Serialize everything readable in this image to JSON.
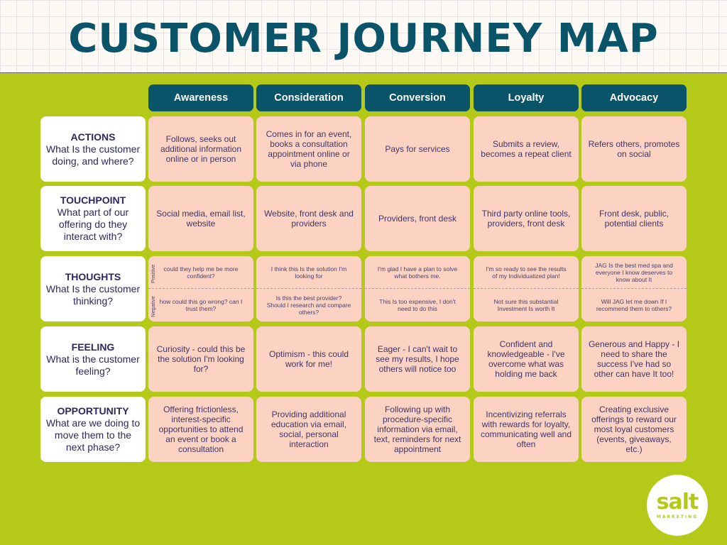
{
  "title": "CUSTOMER JOURNEY MAP",
  "stages": [
    "Awareness",
    "Consideration",
    "Conversion",
    "Loyalty",
    "Advocacy"
  ],
  "rows": [
    {
      "heading": "ACTIONS",
      "question": "What Is the customer doing, and where?",
      "cells": [
        "Follows, seeks out additional information online or in person",
        "Comes in for an event, books a consultation appointment online or via phone",
        "Pays for services",
        "Submits a review, becomes a repeat client",
        "Refers others, promotes on social"
      ]
    },
    {
      "heading": "TOUCHPOINT",
      "question": "What part of our offering do they interact with?",
      "cells": [
        "Social media, email list, website",
        "Website, front desk and providers",
        "Providers, front desk",
        "Third party online tools, providers, front desk",
        "Front desk, public, potential clients"
      ]
    },
    {
      "heading": "THOUGHTS",
      "question": "What Is the customer thinking?",
      "positive_label": "Positive",
      "negative_label": "Negative",
      "positive": [
        "could they help me be more confident?",
        "I think this Is the solution I'm looking for",
        "I'm glad I have a plan to solve what bothers me.",
        "I'm so ready to see the results of my Individualized plan!",
        "JAG Is the best med spa and everyone I know deserves to know about It"
      ],
      "negative": [
        "how could this go wrong? can I trust them?",
        "Is this the best provider? Should I research and compare others?",
        "This Is too expensive, I don't need to do this",
        "Not sure this substantial Investment Is worth It",
        "Will JAG let me down If I recommend them to others?"
      ]
    },
    {
      "heading": "FEELING",
      "question": "What is the customer feeling?",
      "cells": [
        "Curiosity - could this be the solution I'm looking for?",
        "Optimism - this could work for me!",
        "Eager - I can't wait to see my results, I hope others will notice too",
        "Confident and knowledgeable - I've overcome what was holding me back",
        "Generous and Happy - I need to share the success I've had so other can have It too!"
      ]
    },
    {
      "heading": "OPPORTUNITY",
      "question": "What are we doing to move them to the next phase?",
      "cells": [
        "Offering frictionless, interest-specific opportunities to attend an event or book a consultation",
        "Providing additional education via email, social, personal interaction",
        "Following up with procedure-specific information via email, text, reminders for next appointment",
        "Incentivizing referrals with rewards for loyalty, communicating well and often",
        "Creating exclusive offerings to reward our most loyal customers (events, giveaways, etc.)"
      ]
    }
  ],
  "logo": {
    "word": "salt",
    "sub": "MARKETING"
  },
  "colors": {
    "background": "#b5c918",
    "accent": "#0a5469",
    "cell": "#fcd3c3"
  }
}
